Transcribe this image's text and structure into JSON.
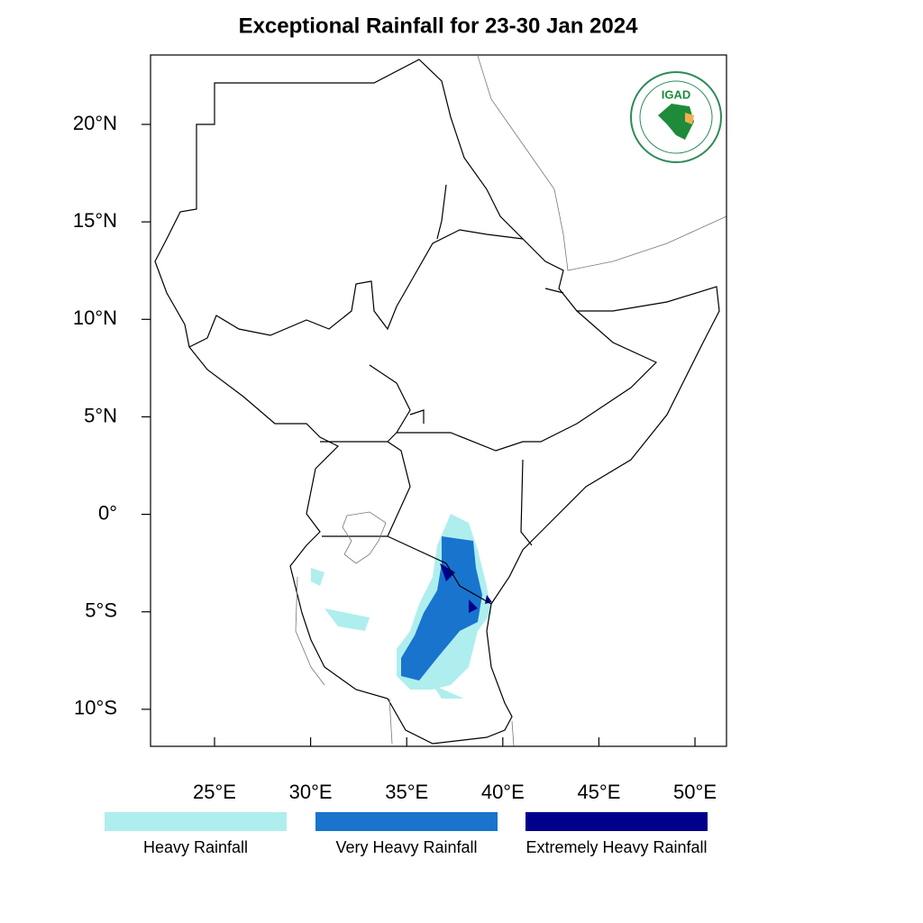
{
  "title": "Exceptional Rainfall for 23-30 Jan 2024",
  "map": {
    "lon_range": [
      21.67,
      51.64
    ],
    "lat_range": [
      -11.9,
      23.56
    ],
    "lon_ticks": [
      {
        "value": 25,
        "label": "25°E"
      },
      {
        "value": 30,
        "label": "30°E"
      },
      {
        "value": 35,
        "label": "35°E"
      },
      {
        "value": 40,
        "label": "40°E"
      },
      {
        "value": 45,
        "label": "45°E"
      },
      {
        "value": 50,
        "label": "50°E"
      }
    ],
    "lat_ticks": [
      {
        "value": 20,
        "label": "20°N"
      },
      {
        "value": 15,
        "label": "15°N"
      },
      {
        "value": 10,
        "label": "10°N"
      },
      {
        "value": 5,
        "label": "5°N"
      },
      {
        "value": 0,
        "label": "0°"
      },
      {
        "value": -5,
        "label": "5°S"
      },
      {
        "value": -10,
        "label": "10°S"
      }
    ]
  },
  "legend": [
    {
      "label": "Heavy Rainfall",
      "color": "#afeeee"
    },
    {
      "label": "Very Heavy Rainfall",
      "color": "#1874cd"
    },
    {
      "label": "Extremely Heavy Rainfall",
      "color": "#00008b"
    }
  ],
  "logo": {
    "text": "IGAD"
  }
}
